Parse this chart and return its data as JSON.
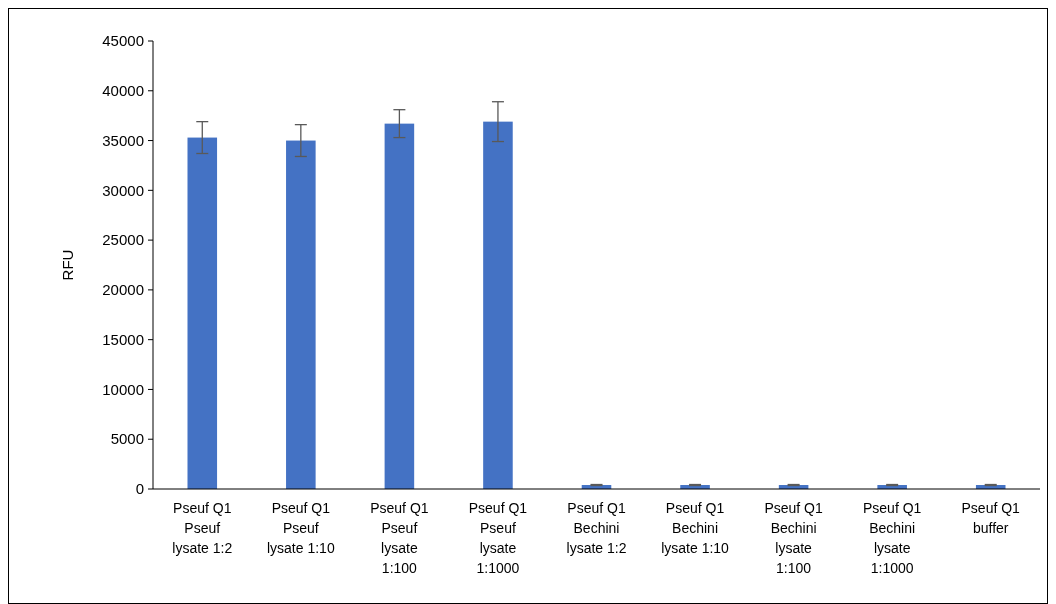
{
  "chart_data": {
    "type": "bar",
    "ylabel": "RFU",
    "categories": [
      "Pseuf Q1\nPseuf\nlysate 1:2",
      "Pseuf Q1\nPseuf\nlysate 1:10",
      "Pseuf Q1\nPseuf\nlysate\n1:100",
      "Pseuf Q1\nPseuf\nlysate\n1:1000",
      "Pseuf Q1\nBechini\nlysate 1:2",
      "Pseuf Q1\nBechini\nlysate 1:10",
      "Pseuf Q1\nBechini\nlysate\n1:100",
      "Pseuf Q1\nBechini\nlysate\n1:1000",
      "Pseuf Q1\nbuffer"
    ],
    "values": [
      35300,
      35000,
      36700,
      36900,
      400,
      400,
      400,
      400,
      400
    ],
    "errors": [
      1600,
      1600,
      1400,
      2000,
      50,
      50,
      50,
      50,
      50
    ],
    "color": "#4472c4",
    "ylim": [
      0,
      45000
    ],
    "yticks": [
      0,
      5000,
      10000,
      15000,
      20000,
      25000,
      30000,
      35000,
      40000,
      45000
    ],
    "grid": false
  }
}
